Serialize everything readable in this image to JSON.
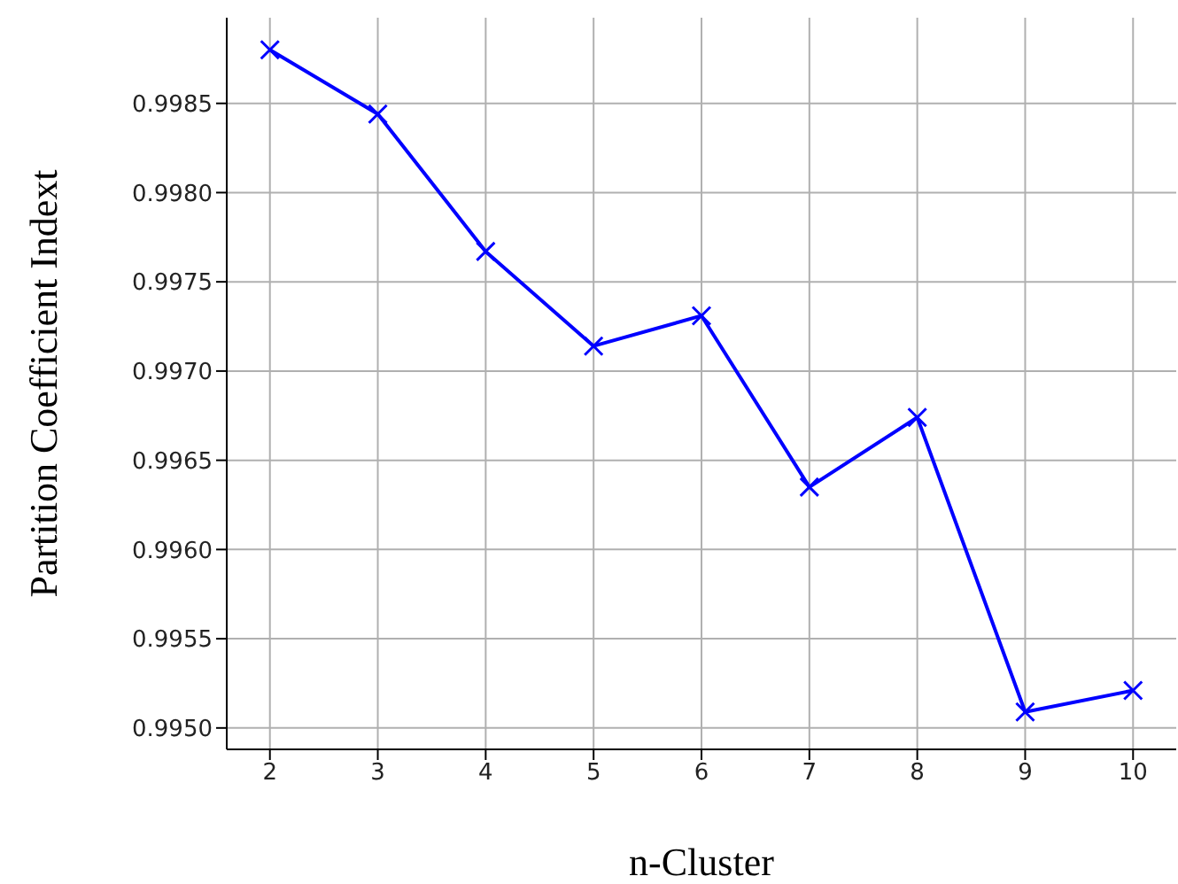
{
  "chart_data": {
    "type": "line",
    "xlabel": "n-Cluster",
    "ylabel": "Partition Coefficient Indext",
    "x": [
      2,
      3,
      4,
      5,
      6,
      7,
      8,
      9,
      10
    ],
    "series": [
      {
        "color": "#0000ff",
        "values": [
          0.9988,
          0.99844,
          0.99767,
          0.99714,
          0.99731,
          0.99635,
          0.99674,
          0.99509,
          0.99521
        ]
      }
    ],
    "xlim": [
      1.6,
      10.4
    ],
    "xticks": [
      2,
      3,
      4,
      5,
      6,
      7,
      8,
      9,
      10
    ],
    "ylim": [
      0.99488,
      0.99898
    ],
    "yticks": [
      {
        "value": 0.995,
        "label": "0.9950"
      },
      0.9955,
      {
        "value": 0.996,
        "label": "0.9960"
      },
      0.9965,
      {
        "value": 0.997,
        "label": "0.9970"
      },
      0.9975,
      {
        "value": 0.998,
        "label": "0.9980"
      },
      0.9985
    ],
    "grid": true,
    "marker": "cross",
    "line_style": "solid"
  }
}
